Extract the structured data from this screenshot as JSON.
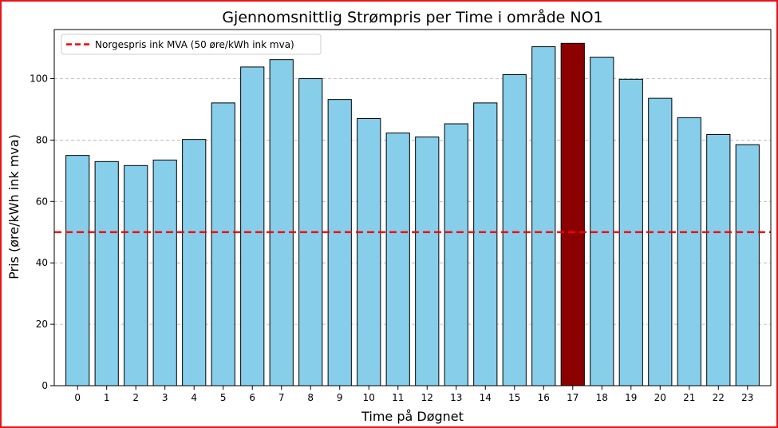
{
  "chart_data": {
    "type": "bar",
    "title": "Gjennomsnittlig Strømpris per Time i område NO1",
    "xlabel": "Time på Døgnet",
    "ylabel": "Pris (øre/kWh ink mva)",
    "categories": [
      "0",
      "1",
      "2",
      "3",
      "4",
      "5",
      "6",
      "7",
      "8",
      "9",
      "10",
      "11",
      "12",
      "13",
      "14",
      "15",
      "16",
      "17",
      "18",
      "19",
      "20",
      "21",
      "22",
      "23"
    ],
    "values": [
      75,
      73,
      71.7,
      73.5,
      80.2,
      92.1,
      103.8,
      106.2,
      100,
      93.2,
      87,
      82.3,
      81,
      85.3,
      92.1,
      101.3,
      110.4,
      111.5,
      107,
      99.8,
      93.6,
      87.3,
      81.8,
      78.5
    ],
    "highlight_index": 17,
    "bar_color": "#87ceeb",
    "highlight_color": "#8b0000",
    "edge_color": "#000000",
    "ylim": [
      0,
      116
    ],
    "yticks": [
      0,
      20,
      40,
      60,
      80,
      100
    ],
    "grid": "y-dashed",
    "reference_line": {
      "value": 50,
      "label": "Norgespris ink MVA (50 øre/kWh ink mva)",
      "color": "#ff0000",
      "style": "dashed"
    },
    "legend_position": "top-left"
  }
}
